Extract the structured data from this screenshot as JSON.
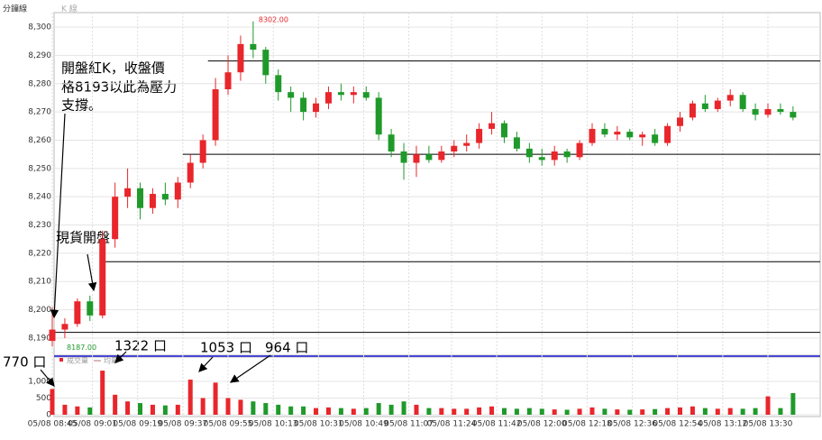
{
  "chart_data": {
    "type": "candlestick",
    "header": "分鐘線",
    "header_tab": "K 線",
    "up_color": "#e8262b",
    "down_color": "#1f9a2a",
    "x": [
      "05/08 08:45",
      "05/08 08:50",
      "05/08 08:55",
      "05/08 09:00",
      "05/08 09:05",
      "05/08 09:10",
      "05/08 09:15",
      "05/08 09:20",
      "05/08 09:25",
      "05/08 09:30",
      "05/08 09:35",
      "05/08 09:40",
      "05/08 09:45",
      "05/08 09:50",
      "05/08 09:55",
      "05/08 10:00",
      "05/08 10:05",
      "05/08 10:10",
      "05/08 10:15",
      "05/08 10:20",
      "05/08 10:25",
      "05/08 10:30",
      "05/08 10:35",
      "05/08 10:40",
      "05/08 10:45",
      "05/08 10:50",
      "05/08 10:55",
      "05/08 11:00",
      "05/08 11:05",
      "05/08 11:10",
      "05/08 11:15",
      "05/08 11:20",
      "05/08 11:25",
      "05/08 11:30",
      "05/08 11:35",
      "05/08 11:40",
      "05/08 11:45",
      "05/08 11:50",
      "05/08 11:55",
      "05/08 12:00",
      "05/08 12:05",
      "05/08 12:10",
      "05/08 12:15",
      "05/08 12:20",
      "05/08 12:25",
      "05/08 12:30",
      "05/08 12:35",
      "05/08 12:40",
      "05/08 12:45",
      "05/08 12:50",
      "05/08 12:55",
      "05/08 13:00",
      "05/08 13:05",
      "05/08 13:10",
      "05/08 13:15",
      "05/08 13:20",
      "05/08 13:25",
      "05/08 13:30",
      "05/08 13:35",
      "05/08 13:40"
    ],
    "open": [
      8189,
      8193,
      8195,
      8203,
      8198,
      8225,
      8240,
      8243,
      8236,
      8241,
      8239,
      8245,
      8252,
      8260,
      8278,
      8284,
      8294,
      8292,
      8283,
      8277,
      8275,
      8270,
      8273,
      8277,
      8276,
      8277,
      8275,
      8262,
      8256,
      8252,
      8255,
      8253,
      8256,
      8258,
      8259,
      8264,
      8266,
      8261,
      8257,
      8254,
      8253,
      8256,
      8254,
      8259,
      8264,
      8262,
      8263,
      8261,
      8262,
      8259,
      8265,
      8268,
      8273,
      8271,
      8274,
      8276,
      8271,
      8269,
      8271,
      8270
    ],
    "high": [
      8201,
      8197,
      8204,
      8205,
      8228,
      8245,
      8250,
      8245,
      8243,
      8245,
      8247,
      8255,
      8262,
      8282,
      8290,
      8297,
      8302,
      8293,
      8285,
      8279,
      8277,
      8275,
      8279,
      8280,
      8279,
      8279,
      8277,
      8264,
      8259,
      8258,
      8258,
      8258,
      8260,
      8262,
      8266,
      8270,
      8267,
      8263,
      8259,
      8257,
      8258,
      8257,
      8260,
      8266,
      8266,
      8265,
      8264,
      8263,
      8264,
      8266,
      8270,
      8274,
      8276,
      8275,
      8278,
      8277,
      8273,
      8273,
      8273,
      8272
    ],
    "low": [
      8187,
      8190,
      8194,
      8196,
      8197,
      8222,
      8236,
      8232,
      8234,
      8237,
      8236,
      8243,
      8250,
      8258,
      8276,
      8281,
      8289,
      8280,
      8274,
      8270,
      8267,
      8268,
      8271,
      8274,
      8273,
      8274,
      8260,
      8254,
      8246,
      8247,
      8252,
      8252,
      8254,
      8256,
      8257,
      8262,
      8259,
      8256,
      8252,
      8251,
      8251,
      8252,
      8253,
      8258,
      8261,
      8260,
      8260,
      8258,
      8258,
      8258,
      8263,
      8267,
      8270,
      8270,
      8272,
      8270,
      8267,
      8268,
      8269,
      8267
    ],
    "close": [
      8193,
      8195,
      8203,
      8198,
      8225,
      8240,
      8243,
      8236,
      8241,
      8239,
      8245,
      8252,
      8260,
      8278,
      8284,
      8294,
      8292,
      8283,
      8277,
      8275,
      8270,
      8273,
      8277,
      8276,
      8277,
      8275,
      8262,
      8256,
      8252,
      8255,
      8253,
      8256,
      8258,
      8259,
      8264,
      8266,
      8261,
      8257,
      8254,
      8253,
      8256,
      8254,
      8259,
      8264,
      8262,
      8263,
      8261,
      8262,
      8259,
      8265,
      8268,
      8273,
      8271,
      8274,
      8276,
      8271,
      8269,
      8271,
      8270,
      8268
    ],
    "volume": [
      770,
      300,
      250,
      220,
      1322,
      600,
      400,
      350,
      300,
      280,
      300,
      1053,
      500,
      964,
      500,
      450,
      400,
      350,
      300,
      250,
      250,
      200,
      220,
      200,
      180,
      200,
      350,
      300,
      400,
      300,
      200,
      200,
      180,
      180,
      220,
      250,
      200,
      180,
      200,
      180,
      160,
      150,
      180,
      220,
      180,
      160,
      150,
      160,
      170,
      200,
      220,
      250,
      200,
      180,
      200,
      180,
      200,
      550,
      200,
      650
    ],
    "ylim": [
      8186,
      8304
    ],
    "yticks": [
      {
        "value": 8190,
        "label": "8,190"
      },
      {
        "value": 8200,
        "label": "8,200"
      },
      {
        "value": 8210,
        "label": "8,210"
      },
      {
        "value": 8220,
        "label": "8,220"
      },
      {
        "value": 8230,
        "label": "8,230"
      },
      {
        "value": 8240,
        "label": "8,240"
      },
      {
        "value": 8250,
        "label": "8,250"
      },
      {
        "value": 8260,
        "label": "8,260"
      },
      {
        "value": 8270,
        "label": "8,270"
      },
      {
        "value": 8280,
        "label": "8,280"
      },
      {
        "value": 8290,
        "label": "8,290"
      },
      {
        "value": 8300,
        "label": "8,300"
      }
    ],
    "volume_ylim": [
      0,
      1500
    ],
    "volume_yticks": [
      0,
      500,
      {
        "value": 1000,
        "label": "1,000"
      }
    ],
    "volume_legend": [
      "成交量",
      "均量"
    ],
    "xticks": [
      "05/08 08:45",
      "05/08 09:01",
      "05/08 09:19",
      "05/08 09:37",
      "05/08 09:55",
      "05/08 10:13",
      "05/08 10:31",
      "05/08 10:49",
      "05/08 11:07",
      "05/08 11:24",
      "05/08 11:42",
      "05/08 12:00",
      "05/08 12:18",
      "05/08 12:36",
      "05/08 12:54",
      "05/08 13:12",
      "05/08 13:30"
    ],
    "high_label": {
      "value": 8302,
      "label": "8302.00"
    },
    "low_label": {
      "value": 8187,
      "label": "8187.00"
    },
    "reference_lines": [
      {
        "value": 8288,
        "start": "05/08 09:47"
      },
      {
        "value": 8255,
        "start": "05/08 09:37"
      },
      {
        "value": 8217,
        "start": "05/08 09:06"
      },
      {
        "value": 8192,
        "start": "05/08 08:45"
      }
    ],
    "annotations": {
      "open_note": [
        "開盤紅K，收盤價",
        "格8193以此為壓力",
        "支撐。"
      ],
      "spot_open": "現貨開盤",
      "volume_notes": [
        "770 口",
        "1322 口",
        "1053 口",
        "964 口"
      ]
    }
  }
}
